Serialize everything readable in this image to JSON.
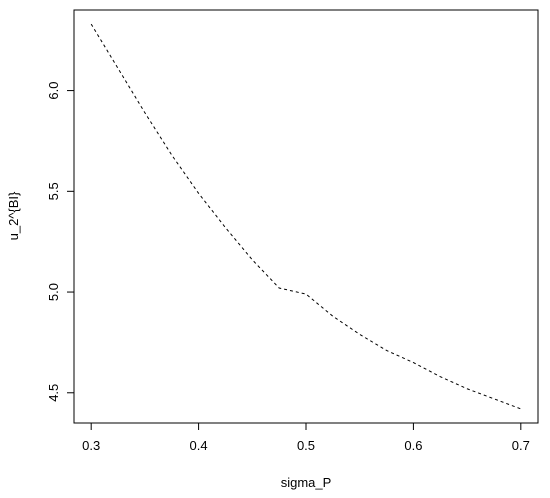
{
  "chart_data": {
    "type": "line",
    "title": "",
    "xlabel": "sigma_P",
    "ylabel": "u_2^{BI}",
    "xlim": [
      0.284,
      0.716
    ],
    "ylim": [
      4.35,
      6.4
    ],
    "xticks": [
      0.3,
      0.4,
      0.5,
      0.6,
      0.7
    ],
    "xtick_labels": [
      "0.3",
      "0.4",
      "0.5",
      "0.6",
      "0.7"
    ],
    "yticks": [
      4.5,
      5.0,
      5.5,
      6.0
    ],
    "ytick_labels": [
      "4.5",
      "5.0",
      "5.5",
      "6.0"
    ],
    "grid": false,
    "legend": "none",
    "line_style": "dashed",
    "line_color": "#000000",
    "series": [
      {
        "x": [
          0.3,
          0.325,
          0.35,
          0.375,
          0.4,
          0.425,
          0.45,
          0.475,
          0.5,
          0.525,
          0.55,
          0.575,
          0.6,
          0.625,
          0.65,
          0.675,
          0.7
        ],
        "values": [
          6.33,
          6.11,
          5.89,
          5.68,
          5.49,
          5.32,
          5.16,
          5.02,
          4.99,
          4.88,
          4.79,
          4.71,
          4.65,
          4.58,
          4.52,
          4.47,
          4.42
        ]
      }
    ]
  }
}
